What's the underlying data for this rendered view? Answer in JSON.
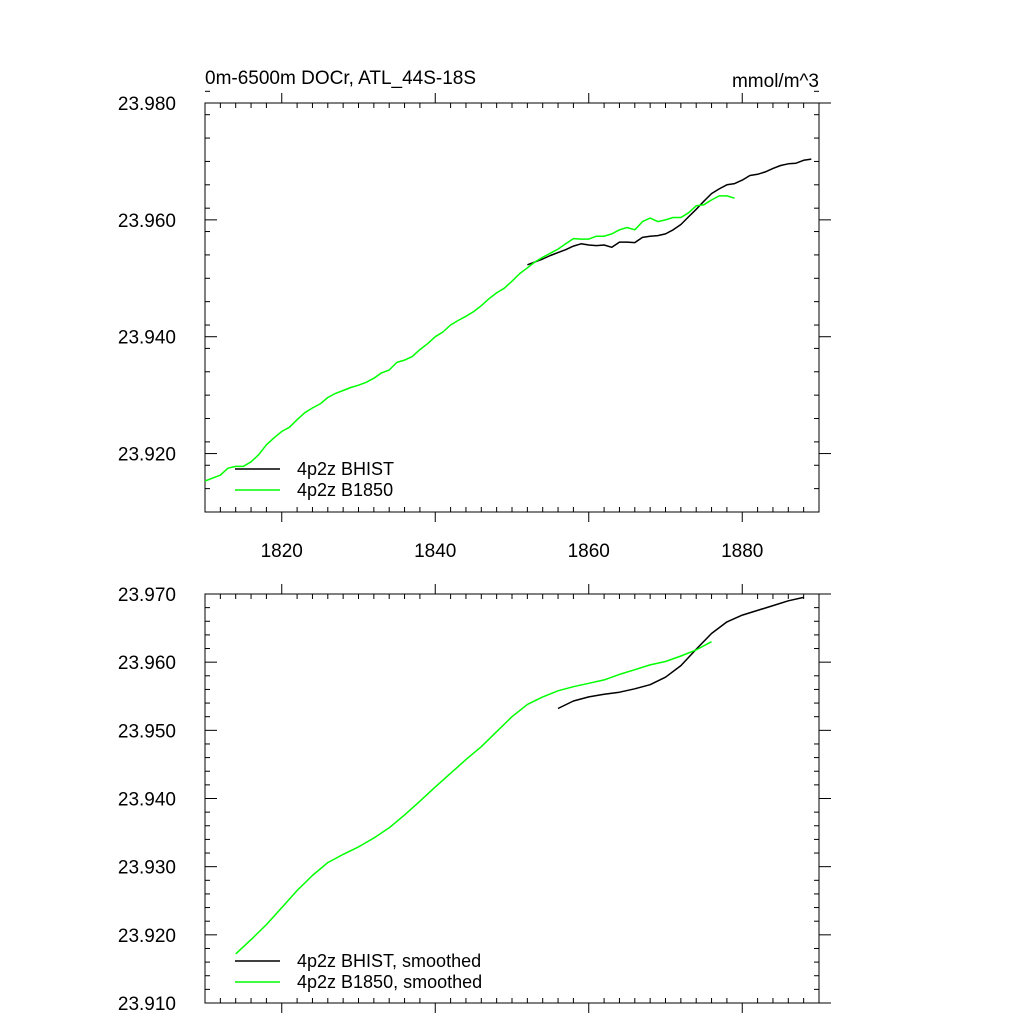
{
  "chart_data": [
    {
      "type": "line",
      "title": "0m-6500m DOCr, ATL_44S-18S",
      "units": "mmol/m^3",
      "xlim": [
        1810,
        1890
      ],
      "ylim": [
        23.91,
        23.98
      ],
      "xticks": [
        1820,
        1840,
        1860,
        1880
      ],
      "xtick_labels": [
        "1820",
        "1840",
        "1860",
        "1880"
      ],
      "yticks": [
        23.92,
        23.94,
        23.96,
        23.98
      ],
      "ytick_labels": [
        "23.920",
        "23.940",
        "23.960",
        "23.980"
      ],
      "legend_position": "bottom-left",
      "series": [
        {
          "name": "4p2z BHIST",
          "color": "#000000",
          "x": [
            1852,
            1853,
            1854,
            1855,
            1856,
            1857,
            1858,
            1859,
            1860,
            1861,
            1862,
            1863,
            1864,
            1865,
            1866,
            1867,
            1868,
            1869,
            1870,
            1871,
            1872,
            1873,
            1874,
            1875,
            1876,
            1877,
            1878,
            1879,
            1880,
            1881,
            1882,
            1883,
            1884,
            1885,
            1886,
            1887,
            1888,
            1889
          ],
          "values": [
            23.9523,
            23.9528,
            23.9533,
            23.9539,
            23.9544,
            23.9549,
            23.9555,
            23.9559,
            23.9557,
            23.9556,
            23.9557,
            23.9553,
            23.9562,
            23.9562,
            23.9561,
            23.957,
            23.9572,
            23.9573,
            23.9576,
            23.9583,
            23.9592,
            23.9605,
            23.9618,
            23.9632,
            23.9645,
            23.9653,
            23.966,
            23.9662,
            23.9668,
            23.9676,
            23.9678,
            23.9682,
            23.9688,
            23.9693,
            23.9696,
            23.9697,
            23.9702,
            23.9704
          ]
        },
        {
          "name": "4p2z B1850",
          "color": "#00ff00",
          "x": [
            1810,
            1811,
            1812,
            1813,
            1814,
            1815,
            1816,
            1817,
            1818,
            1819,
            1820,
            1821,
            1822,
            1823,
            1824,
            1825,
            1826,
            1827,
            1828,
            1829,
            1830,
            1831,
            1832,
            1833,
            1834,
            1835,
            1836,
            1837,
            1838,
            1839,
            1840,
            1841,
            1842,
            1843,
            1844,
            1845,
            1846,
            1847,
            1848,
            1849,
            1850,
            1851,
            1852,
            1853,
            1854,
            1855,
            1856,
            1857,
            1858,
            1859,
            1860,
            1861,
            1862,
            1863,
            1864,
            1865,
            1866,
            1867,
            1868,
            1869,
            1870,
            1871,
            1872,
            1873,
            1874,
            1875,
            1876,
            1877,
            1878,
            1879
          ],
          "values": [
            23.9153,
            23.9158,
            23.9163,
            23.9175,
            23.9178,
            23.9178,
            23.9186,
            23.9198,
            23.9215,
            23.9227,
            23.9238,
            23.9245,
            23.9258,
            23.927,
            23.9278,
            23.9285,
            23.9296,
            23.9303,
            23.9308,
            23.9313,
            23.9317,
            23.9322,
            23.9329,
            23.9338,
            23.9343,
            23.9356,
            23.936,
            23.9366,
            23.9378,
            23.9388,
            23.94,
            23.9408,
            23.942,
            23.9428,
            23.9435,
            23.9443,
            23.9453,
            23.9465,
            23.9475,
            23.9483,
            23.9495,
            23.9508,
            23.9518,
            23.9528,
            23.9536,
            23.9543,
            23.955,
            23.9559,
            23.9568,
            23.9567,
            23.9567,
            23.9572,
            23.9572,
            23.9576,
            23.9583,
            23.9587,
            23.9583,
            23.9597,
            23.9603,
            23.9597,
            23.96,
            23.9604,
            23.9604,
            23.9612,
            23.9624,
            23.9626,
            23.9634,
            23.9641,
            23.9641,
            23.9637
          ]
        }
      ]
    },
    {
      "type": "line",
      "xlim": [
        1810,
        1890
      ],
      "ylim": [
        23.91,
        23.97
      ],
      "xticks": [
        1820,
        1840,
        1860,
        1880
      ],
      "yticks": [
        23.91,
        23.92,
        23.93,
        23.94,
        23.95,
        23.96,
        23.97
      ],
      "ytick_labels": [
        "23.910",
        "23.920",
        "23.930",
        "23.940",
        "23.950",
        "23.960",
        "23.970"
      ],
      "legend_position": "bottom-left",
      "series": [
        {
          "name": "4p2z BHIST, smoothed",
          "color": "#000000",
          "x": [
            1856,
            1858,
            1860,
            1862,
            1864,
            1866,
            1868,
            1870,
            1872,
            1874,
            1876,
            1878,
            1880,
            1882,
            1884,
            1886,
            1888
          ],
          "values": [
            23.9532,
            23.9543,
            23.9549,
            23.9553,
            23.9556,
            23.9561,
            23.9567,
            23.9578,
            23.9595,
            23.9619,
            23.9642,
            23.9659,
            23.9669,
            23.9676,
            23.9683,
            23.969,
            23.9695
          ]
        },
        {
          "name": "4p2z B1850, smoothed",
          "color": "#00ff00",
          "x": [
            1814,
            1816,
            1818,
            1820,
            1822,
            1824,
            1826,
            1828,
            1830,
            1832,
            1834,
            1836,
            1838,
            1840,
            1842,
            1844,
            1846,
            1848,
            1850,
            1852,
            1854,
            1856,
            1858,
            1860,
            1862,
            1864,
            1866,
            1868,
            1870,
            1872,
            1874,
            1876
          ],
          "values": [
            23.9172,
            23.9193,
            23.9215,
            23.924,
            23.9265,
            23.9287,
            23.9306,
            23.9318,
            23.9329,
            23.9342,
            23.9357,
            23.9376,
            23.9396,
            23.9417,
            23.9437,
            23.9457,
            23.9476,
            23.9498,
            23.952,
            23.9538,
            23.9549,
            23.9558,
            23.9564,
            23.9569,
            23.9574,
            23.9582,
            23.9589,
            23.9596,
            23.9601,
            23.9609,
            23.9618,
            23.963
          ]
        }
      ]
    }
  ]
}
